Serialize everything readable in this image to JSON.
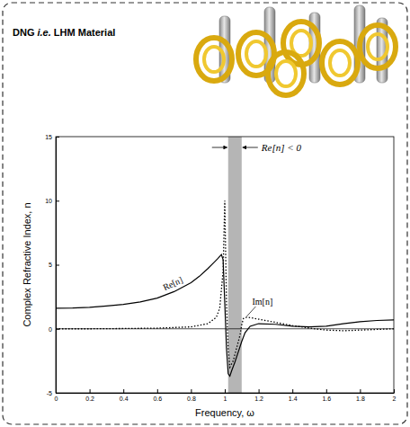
{
  "chart_data": {
    "type": "line",
    "title": "DNG i.e. LHM Material",
    "x_label": "Frequency, ω",
    "y_label": "Complex Refractive Index, n",
    "xlim": [
      0,
      2
    ],
    "xticks": [
      0,
      0.2,
      0.4,
      0.6,
      0.8,
      1,
      1.2,
      1.4,
      1.6,
      1.8,
      2
    ],
    "ylim": [
      -5,
      15
    ],
    "yticks": [
      -5,
      0,
      5,
      10,
      15
    ],
    "grid": false,
    "series": [
      {
        "name": "Re[n]",
        "color": "#000000",
        "line_style": "solid",
        "x": [
          0,
          0.1,
          0.2,
          0.3,
          0.4,
          0.5,
          0.6,
          0.7,
          0.8,
          0.85,
          0.9,
          0.93,
          0.96,
          0.98,
          0.99,
          1.0,
          1.01,
          1.02,
          1.03,
          1.04,
          1.06,
          1.08,
          1.1,
          1.12,
          1.15,
          1.2,
          1.3,
          1.4,
          1.5,
          1.6,
          1.7,
          1.8,
          1.9,
          2.0
        ],
        "values": [
          1.6,
          1.62,
          1.68,
          1.78,
          1.9,
          2.1,
          2.4,
          2.9,
          3.6,
          4.1,
          4.7,
          5.1,
          5.5,
          5.8,
          5.4,
          2.0,
          -1.5,
          -3.5,
          -3.7,
          -3.3,
          -2.6,
          -1.8,
          -1.0,
          -0.3,
          0.2,
          0.4,
          0.35,
          0.2,
          0.15,
          0.2,
          0.4,
          0.55,
          0.65,
          0.7
        ]
      },
      {
        "name": "Im[n]",
        "color": "#000000",
        "line_style": "dotted",
        "x": [
          0,
          0.2,
          0.4,
          0.6,
          0.8,
          0.9,
          0.95,
          0.97,
          0.99,
          1.0,
          1.005,
          1.01,
          1.02,
          1.03,
          1.05,
          1.07,
          1.09,
          1.1,
          1.11,
          1.13,
          1.16,
          1.2,
          1.3,
          1.4,
          1.5,
          1.6,
          1.7,
          1.8,
          1.9,
          2.0
        ],
        "values": [
          0,
          0,
          0.02,
          0.05,
          0.15,
          0.4,
          0.9,
          1.6,
          4.5,
          10,
          6,
          2,
          -1.5,
          -3,
          -2.5,
          -1.5,
          -0.5,
          0.3,
          0.8,
          0.9,
          0.85,
          0.75,
          0.5,
          0.25,
          0.05,
          -0.1,
          -0.15,
          -0.1,
          -0.05,
          0
        ]
      }
    ],
    "shaded_region": {
      "x": [
        1.02,
        1.1
      ],
      "label": "Re[n] < 0"
    },
    "reference_line": {
      "y": 0
    }
  }
}
